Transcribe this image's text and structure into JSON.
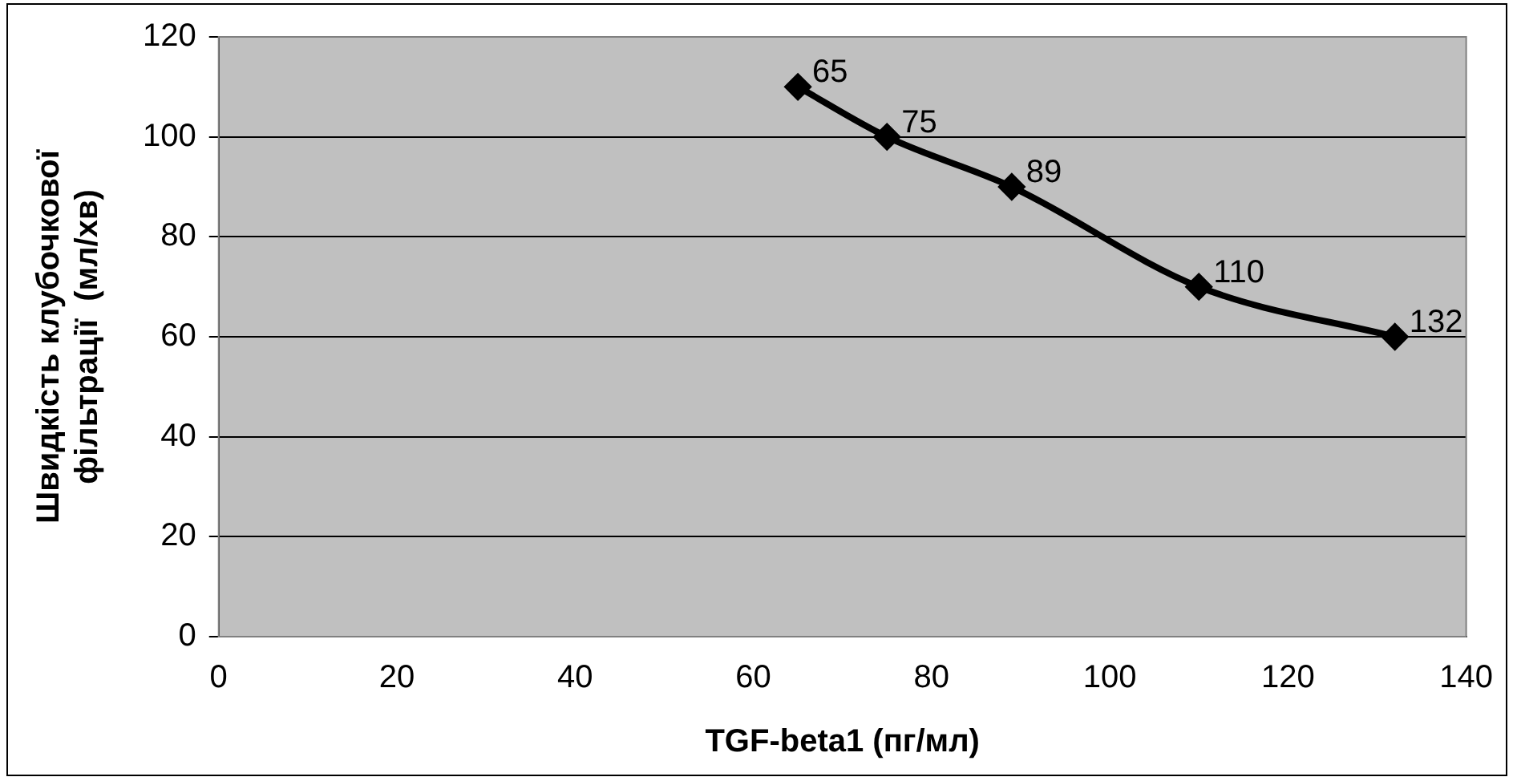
{
  "chart_data": {
    "type": "line",
    "xlabel": "TGF-beta1 (пг/мл)",
    "ylabel": "Швидкість клубочкової\nфільтрації  (мл/хв)",
    "x": [
      65,
      75,
      89,
      110,
      132
    ],
    "series": [
      {
        "color": "#000000",
        "values": [
          110,
          100,
          90,
          70,
          60
        ]
      }
    ],
    "annotations": [
      {
        "text": "65",
        "x": 65,
        "y": 110
      },
      {
        "text": "75",
        "x": 75,
        "y": 100
      },
      {
        "text": "89",
        "x": 89,
        "y": 90
      },
      {
        "text": "110",
        "x": 110,
        "y": 70
      },
      {
        "text": "132",
        "x": 132,
        "y": 60
      }
    ],
    "xlim": [
      0,
      140
    ],
    "xticks": [
      0,
      20,
      40,
      60,
      80,
      100,
      120,
      140
    ],
    "ylim": [
      0,
      120
    ],
    "yticks": [
      0,
      20,
      40,
      60,
      80,
      100,
      120
    ],
    "grid": "y",
    "legend": false,
    "marker": "diamond",
    "line_style": "solid"
  }
}
